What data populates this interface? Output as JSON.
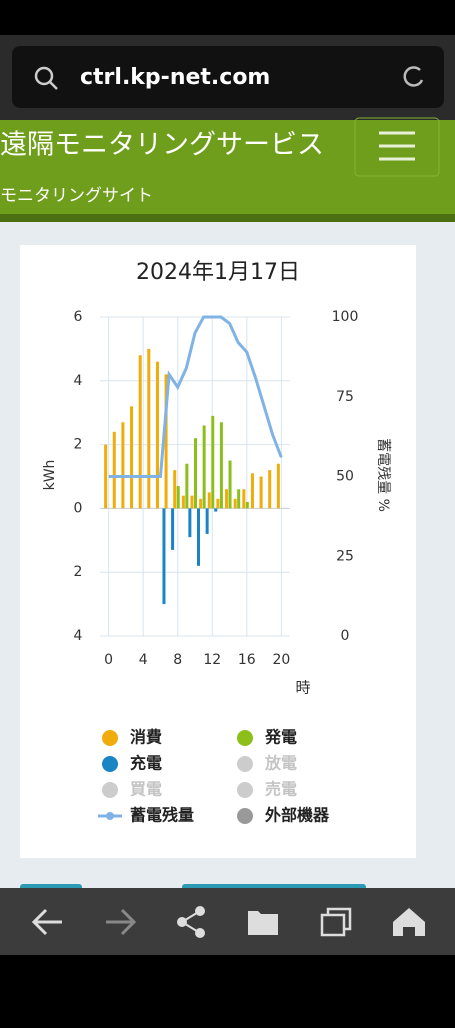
{
  "browser": {
    "url": "ctrl.kp-net.com"
  },
  "header": {
    "title": "遠隔モニタリングサービス",
    "subtitle": "モニタリングサイト"
  },
  "chart_data": {
    "type": "bar",
    "title": "2024年1月17日",
    "x": [
      0,
      1,
      2,
      3,
      4,
      5,
      6,
      7,
      8,
      9,
      10,
      11,
      12,
      13,
      14,
      15,
      16,
      17,
      18,
      19,
      20
    ],
    "xlim": [
      -1,
      21
    ],
    "xticks": [
      0,
      4,
      8,
      12,
      16,
      20
    ],
    "x_label": "時",
    "ylim": [
      -4,
      6
    ],
    "yticks": [
      {
        "value": -4,
        "label": "4"
      },
      {
        "value": -2,
        "label": "2"
      },
      0,
      2,
      4,
      6
    ],
    "y_label": "kWh",
    "y2lim": [
      0,
      100
    ],
    "y2ticks": [
      0,
      25,
      50,
      75,
      100
    ],
    "y2_label": "蓄電残量 %",
    "grid": true,
    "series": [
      {
        "name": "消費",
        "color": "#f0ac0a",
        "values": [
          2.0,
          2.4,
          2.7,
          3.2,
          4.8,
          5.0,
          4.6,
          4.2,
          1.2,
          0.4,
          0.4,
          0.3,
          0.5,
          0.3,
          0.6,
          0.3,
          0.6,
          1.1,
          1.0,
          1.2,
          1.4
        ]
      },
      {
        "name": "発電",
        "color": "#8dbf1a",
        "values": [
          0,
          0,
          0,
          0,
          0,
          0,
          0,
          0,
          0.7,
          1.4,
          2.2,
          2.6,
          2.9,
          2.7,
          1.5,
          0.6,
          0.2,
          0,
          0,
          0,
          0
        ]
      },
      {
        "name": "充電",
        "color": "#1a84c4",
        "values": [
          0,
          0,
          0,
          0,
          0,
          0,
          -3.0,
          -1.3,
          0,
          -0.9,
          -1.8,
          -0.8,
          -0.1,
          0,
          0,
          0,
          0,
          0,
          0,
          0,
          0
        ]
      },
      {
        "name": "蓄電残量",
        "color": "#7fb3e6",
        "axis": "y2",
        "type": "line",
        "values": [
          50,
          50,
          50,
          50,
          50,
          50,
          50,
          82,
          78,
          84,
          95,
          100,
          100,
          100,
          98,
          92,
          89,
          81,
          72,
          63,
          56
        ]
      }
    ],
    "inactive_legend": [
      {
        "name": "放電",
        "color": "#cccccc"
      },
      {
        "name": "買電",
        "color": "#cccccc"
      },
      {
        "name": "売電",
        "color": "#cccccc"
      },
      {
        "name": "外部機器",
        "color": "#999999"
      }
    ]
  }
}
